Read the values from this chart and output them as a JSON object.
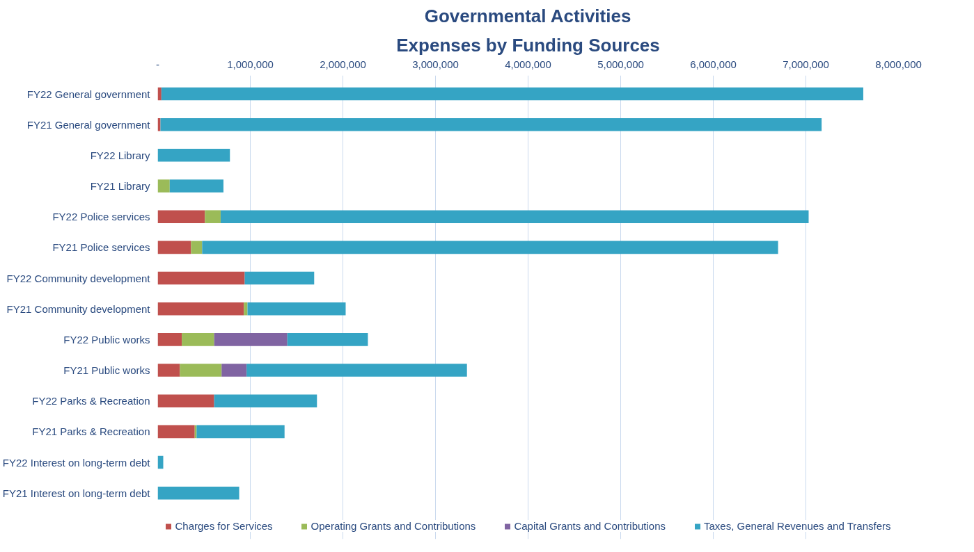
{
  "chart_data": {
    "type": "bar",
    "orientation": "horizontal",
    "stacked": true,
    "title": "Governmental Activities",
    "subtitle": "Expenses by Funding Sources",
    "categories": [
      "FY22 General government",
      "FY21 General government",
      "FY22 Library",
      "FY21 Library",
      "FY22 Police services",
      "FY21 Police services",
      "FY22 Community development",
      "FY21 Community development",
      "FY22 Public works",
      "FY21 Public works",
      "FY22 Parks & Recreation",
      "FY21 Parks & Recreation",
      "FY22 Interest on long-term debt",
      "FY21 Interest on long-term debt"
    ],
    "series": [
      {
        "name": "Charges for Services",
        "color": "#c0504d",
        "values": [
          40000,
          30000,
          null,
          null,
          510000,
          360000,
          940000,
          930000,
          260000,
          240000,
          610000,
          400000,
          null,
          null
        ]
      },
      {
        "name": "Operating Grants and Contributions",
        "color": "#9bbb59",
        "values": [
          null,
          null,
          null,
          130000,
          170000,
          120000,
          null,
          40000,
          350000,
          450000,
          null,
          20000,
          null,
          null
        ]
      },
      {
        "name": "Capital Grants and Contributions",
        "color": "#8064a2",
        "values": [
          null,
          null,
          null,
          null,
          null,
          null,
          null,
          null,
          790000,
          270000,
          null,
          null,
          null,
          null
        ]
      },
      {
        "name": "Taxes, General Revenues and Transfers",
        "color": "#35a4c4",
        "values": [
          7580000,
          7140000,
          780000,
          580000,
          6350000,
          6220000,
          750000,
          1060000,
          870000,
          2380000,
          1110000,
          950000,
          60000,
          880000
        ]
      }
    ],
    "xlim": [
      0,
      8000000
    ],
    "xticks": [
      {
        "value": 0,
        "label": "-"
      },
      {
        "value": 1000000,
        "label": "1,000,000"
      },
      {
        "value": 2000000,
        "label": "2,000,000"
      },
      {
        "value": 3000000,
        "label": "3,000,000"
      },
      {
        "value": 4000000,
        "label": "4,000,000"
      },
      {
        "value": 5000000,
        "label": "5,000,000"
      },
      {
        "value": 6000000,
        "label": "6,000,000"
      },
      {
        "value": 7000000,
        "label": "7,000,000"
      },
      {
        "value": 8000000,
        "label": "8,000,000"
      }
    ],
    "grid": "x",
    "legend": "bottom"
  }
}
